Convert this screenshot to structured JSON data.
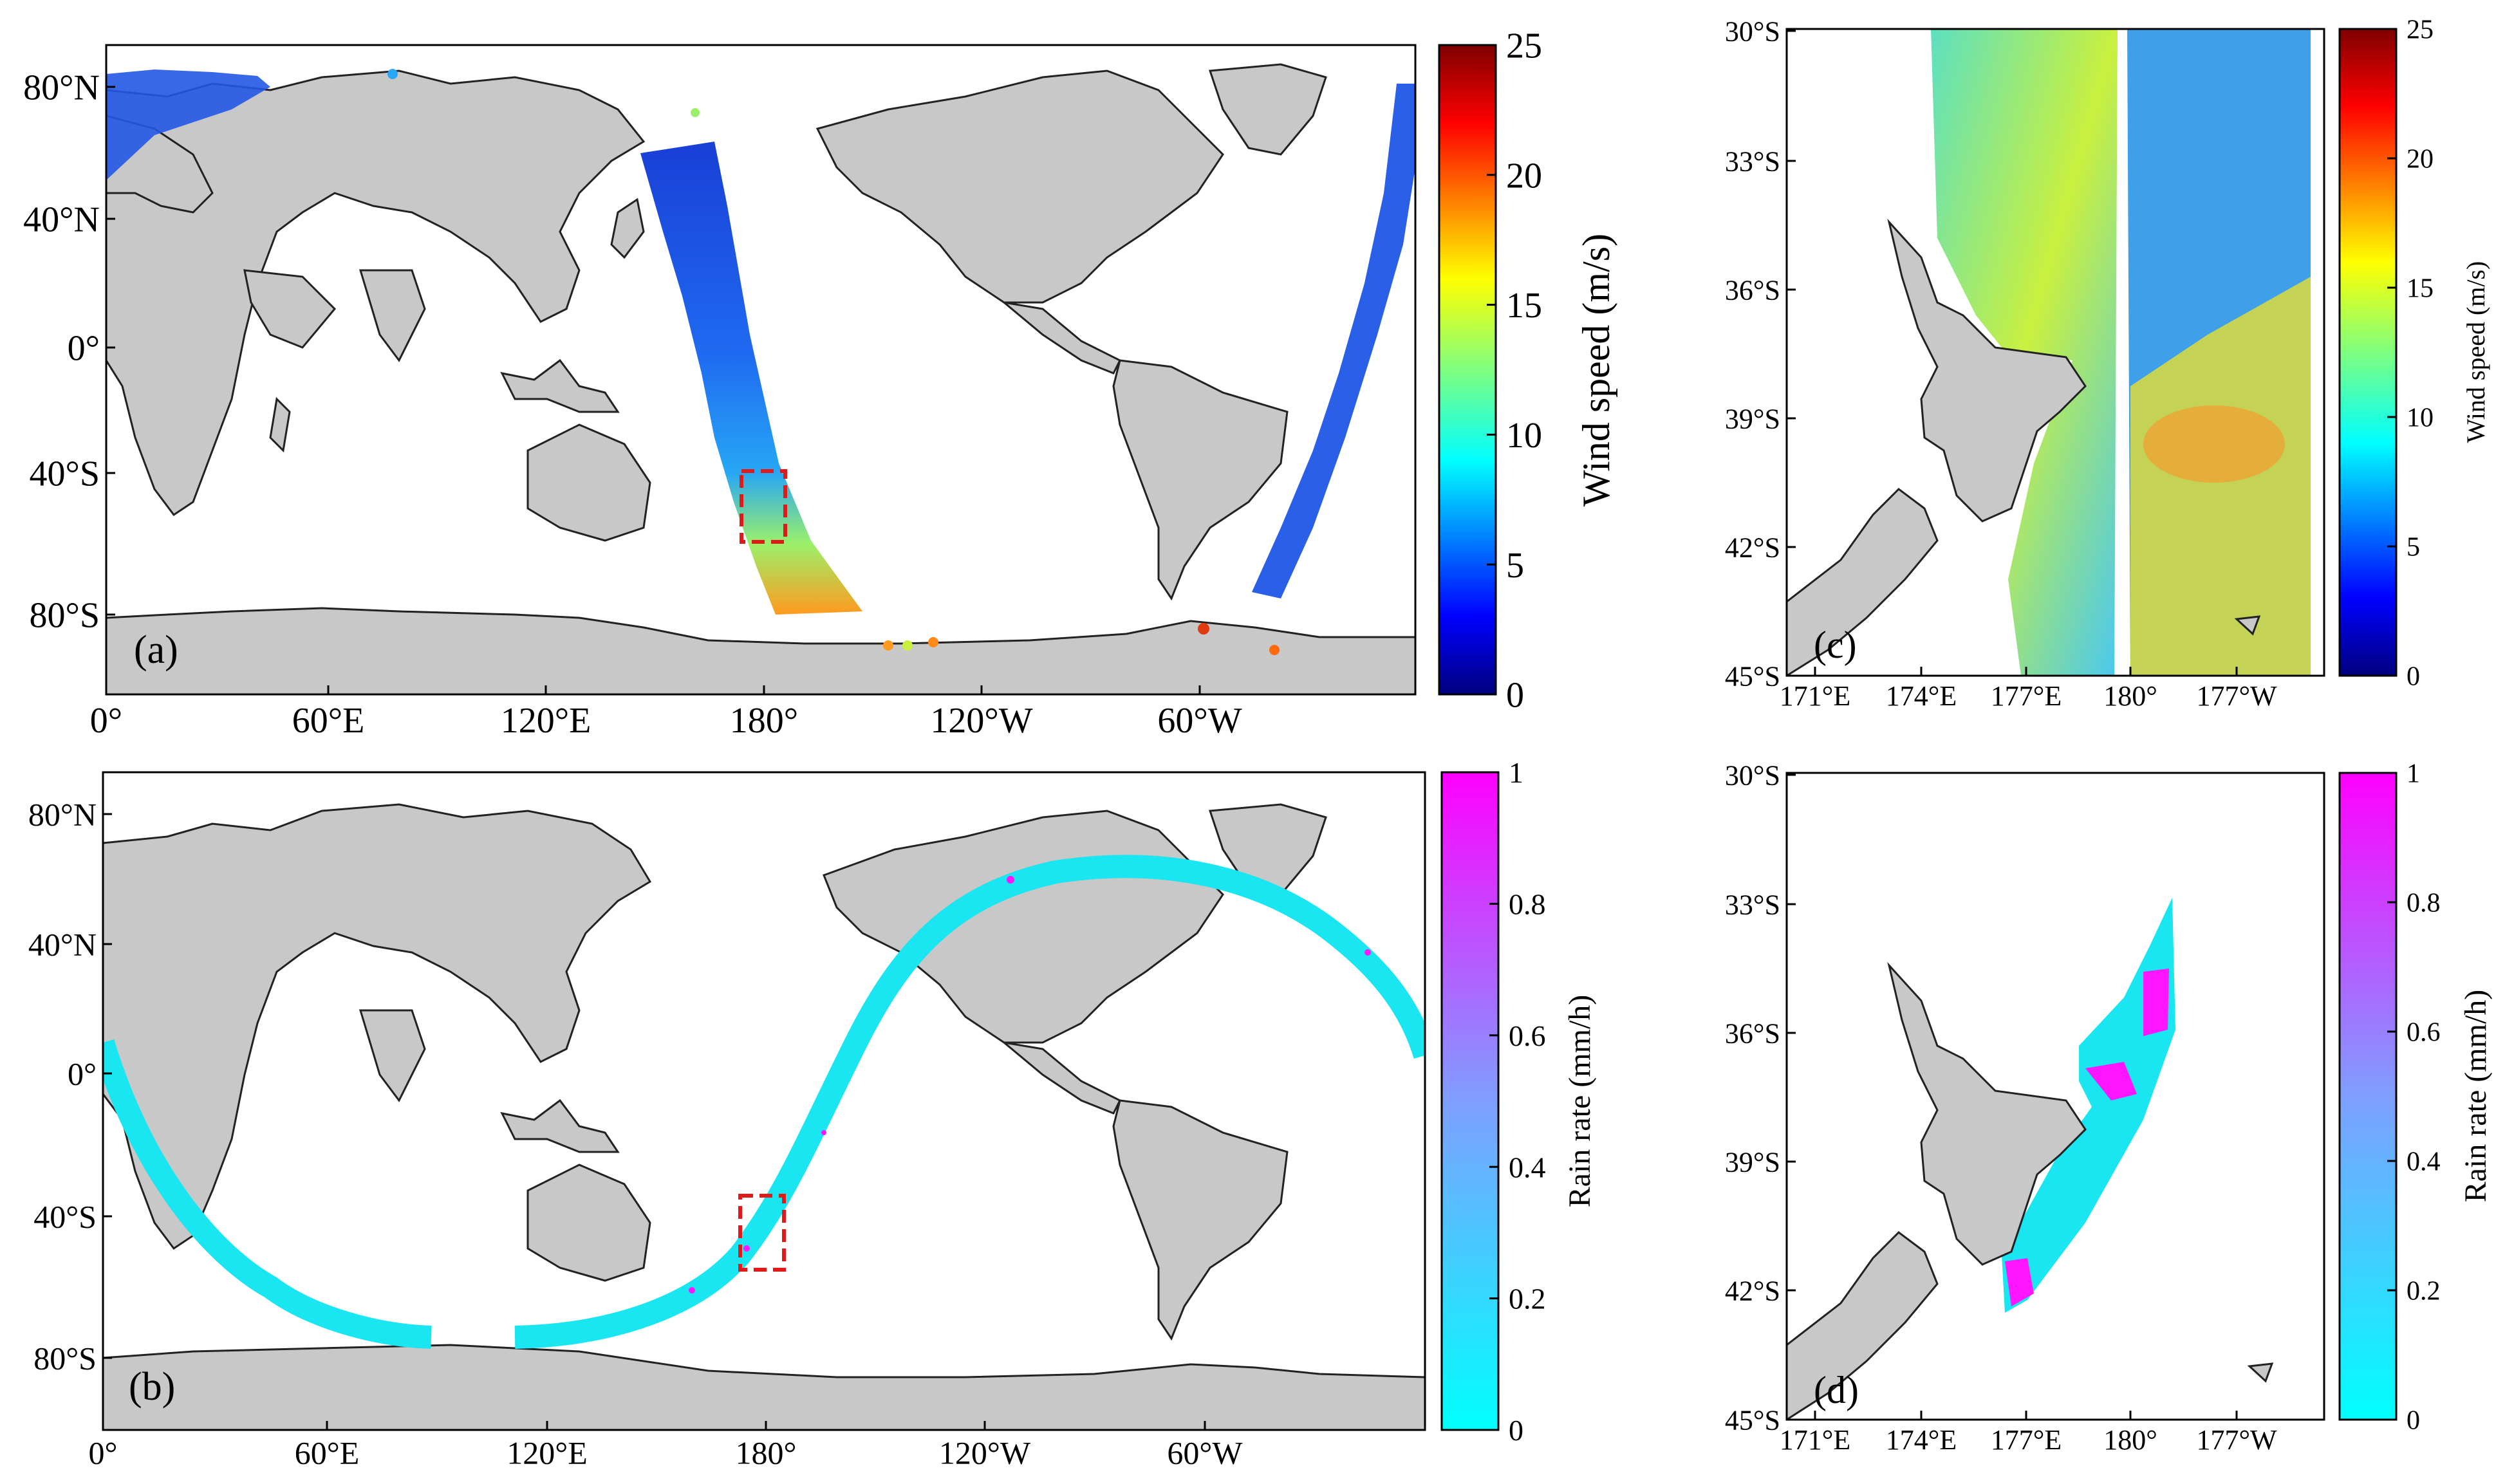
{
  "panels": {
    "a": {
      "letter": "(a)",
      "y_ticks": [
        "80°N",
        "40°N",
        "0°",
        "40°S",
        "80°S"
      ],
      "x_ticks": [
        "0°",
        "60°E",
        "120°E",
        "180°",
        "120°W",
        "60°W"
      ],
      "colorbar": {
        "label": "Wind speed (m/s)",
        "ticks": [
          "0",
          "5",
          "10",
          "15",
          "20",
          "25"
        ],
        "colormap": "jet"
      }
    },
    "b": {
      "letter": "(b)",
      "y_ticks": [
        "80°N",
        "40°N",
        "0°",
        "40°S",
        "80°S"
      ],
      "x_ticks": [
        "0°",
        "60°E",
        "120°E",
        "180°",
        "120°W",
        "60°W"
      ],
      "colorbar": {
        "label": "Rain rate (mm/h)",
        "ticks": [
          "0",
          "0.2",
          "0.4",
          "0.6",
          "0.8",
          "1"
        ],
        "colormap": "cyan-magenta"
      }
    },
    "c": {
      "letter": "(c)",
      "y_ticks": [
        "30°S",
        "33°S",
        "36°S",
        "39°S",
        "42°S",
        "45°S"
      ],
      "x_ticks": [
        "171°E",
        "174°E",
        "177°E",
        "180°",
        "177°W"
      ],
      "colorbar": {
        "label": "Wind speed (m/s)",
        "ticks": [
          "0",
          "5",
          "10",
          "15",
          "20",
          "25"
        ],
        "colormap": "jet"
      }
    },
    "d": {
      "letter": "(d)",
      "y_ticks": [
        "30°S",
        "33°S",
        "36°S",
        "39°S",
        "42°S",
        "45°S"
      ],
      "x_ticks": [
        "171°E",
        "174°E",
        "177°E",
        "180°",
        "177°W"
      ],
      "colorbar": {
        "label": "Rain rate (mm/h)",
        "ticks": [
          "0",
          "0.2",
          "0.4",
          "0.6",
          "0.8",
          "1"
        ],
        "colormap": "cyan-magenta"
      }
    }
  },
  "colors": {
    "land": "#c8c8c8",
    "coast": "#222222",
    "highlight_box": "#e0191b",
    "rain_track": "#19e6f0",
    "rain_high": "#ff16ff"
  }
}
